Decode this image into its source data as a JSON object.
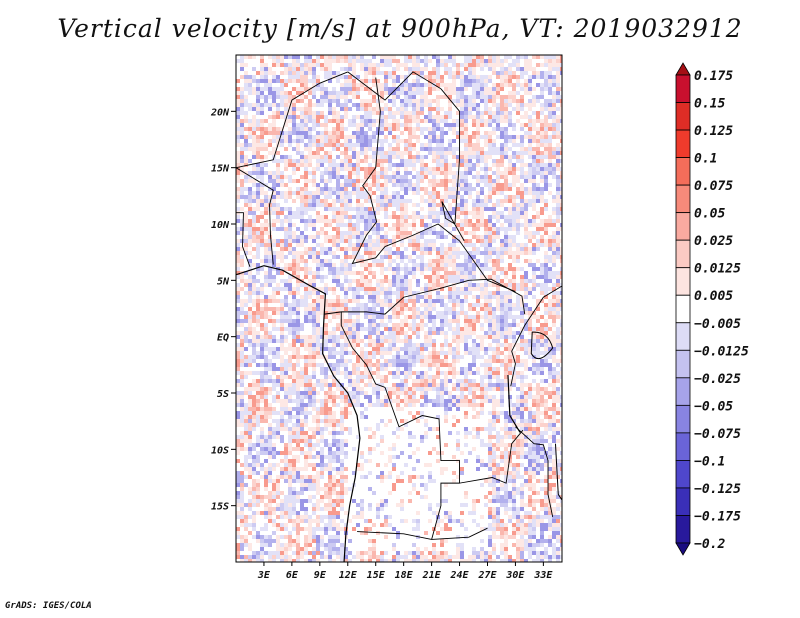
{
  "chart_data": {
    "type": "heatmap",
    "title": "Vertical velocity [m/s] at 900hPa, VT: 2019032912",
    "xlim": [
      0,
      35
    ],
    "ylim": [
      -20,
      25
    ],
    "x_ticks": [
      {
        "value": 3,
        "label": "3E"
      },
      {
        "value": 6,
        "label": "6E"
      },
      {
        "value": 9,
        "label": "9E"
      },
      {
        "value": 12,
        "label": "12E"
      },
      {
        "value": 15,
        "label": "15E"
      },
      {
        "value": 18,
        "label": "18E"
      },
      {
        "value": 21,
        "label": "21E"
      },
      {
        "value": 24,
        "label": "24E"
      },
      {
        "value": 27,
        "label": "27E"
      },
      {
        "value": 30,
        "label": "30E"
      },
      {
        "value": 33,
        "label": "33E"
      }
    ],
    "y_ticks": [
      {
        "value": 20,
        "label": "20N"
      },
      {
        "value": 15,
        "label": "15N"
      },
      {
        "value": 10,
        "label": "10N"
      },
      {
        "value": 5,
        "label": "5N"
      },
      {
        "value": 0,
        "label": "EQ"
      },
      {
        "value": -5,
        "label": "5S"
      },
      {
        "value": -10,
        "label": "10S"
      },
      {
        "value": -15,
        "label": "15S"
      }
    ],
    "colorbar": {
      "levels": [
        "0.175",
        "0.15",
        "0.125",
        "0.1",
        "0.075",
        "0.05",
        "0.025",
        "0.0125",
        "0.005",
        "−0.005",
        "−0.0125",
        "−0.025",
        "−0.05",
        "−0.075",
        "−0.1",
        "−0.125",
        "−0.175",
        "−0.2"
      ],
      "colors": [
        "#a50f15",
        "#c8102e",
        "#de2d26",
        "#ef3b2c",
        "#f46d5a",
        "#f78a7a",
        "#f9aaa0",
        "#fbcac3",
        "#fde4e0",
        "#ffffff",
        "#dddcf6",
        "#c4c2f0",
        "#a6a3ea",
        "#8884e2",
        "#6a64d8",
        "#4f47cc",
        "#3a2fb8",
        "#28199c",
        "#1a0c80"
      ]
    },
    "grid": false
  },
  "credit": "GrADS: IGES/COLA"
}
